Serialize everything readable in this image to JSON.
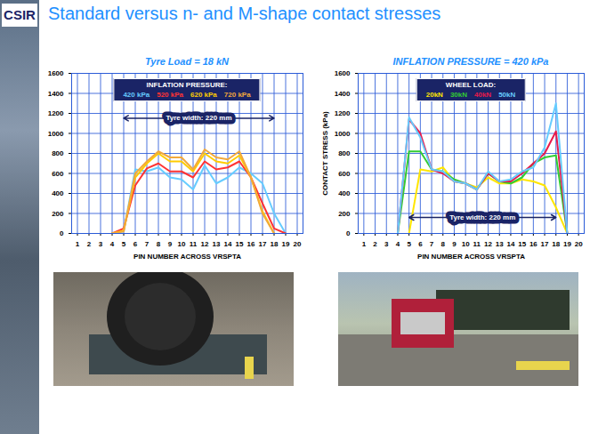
{
  "slide": {
    "logo": "CSIR",
    "title": "Standard versus n- and M-shape contact stresses"
  },
  "chart_data": [
    {
      "type": "line",
      "title": "Tyre Load = 18 kN",
      "xlabel": "PIN NUMBER ACROSS VRSPTA",
      "legend_title": "INFLATION PRESSURE:",
      "legend": "top",
      "grid": true,
      "annotations": [
        {
          "text": "Tyre width: 220 mm"
        }
      ],
      "x": [
        1,
        2,
        3,
        4,
        5,
        6,
        7,
        8,
        9,
        10,
        11,
        12,
        13,
        14,
        15,
        16,
        17,
        18,
        19,
        20
      ],
      "xlim": [
        0.5,
        20.5
      ],
      "xticks": [
        1,
        2,
        3,
        4,
        5,
        6,
        7,
        8,
        9,
        10,
        11,
        12,
        13,
        14,
        15,
        16,
        17,
        18,
        19,
        20
      ],
      "ylim": [
        0,
        1600
      ],
      "yticks": [
        0,
        200,
        400,
        600,
        800,
        1000,
        1200,
        1400,
        1600
      ],
      "series": [
        {
          "name": "420 kPa",
          "color": "#66ccff",
          "values": [
            null,
            null,
            null,
            0,
            20,
            640,
            620,
            660,
            560,
            540,
            440,
            680,
            500,
            560,
            660,
            600,
            500,
            200,
            0,
            null
          ]
        },
        {
          "name": "520 kPa",
          "color": "#ff3333",
          "values": [
            null,
            null,
            null,
            0,
            50,
            480,
            650,
            700,
            620,
            620,
            560,
            720,
            640,
            660,
            720,
            560,
            300,
            50,
            0,
            null
          ]
        },
        {
          "name": "620 kPa",
          "color": "#ffcc00",
          "values": [
            null,
            null,
            null,
            0,
            30,
            560,
            700,
            800,
            720,
            720,
            620,
            800,
            720,
            700,
            780,
            560,
            220,
            0,
            null,
            null
          ]
        },
        {
          "name": "720 kPa",
          "color": "#f2a93b",
          "values": [
            null,
            null,
            null,
            0,
            20,
            600,
            720,
            820,
            760,
            760,
            640,
            840,
            760,
            740,
            820,
            560,
            200,
            0,
            null,
            null
          ]
        }
      ]
    },
    {
      "type": "line",
      "title": "INFLATION PRESSURE = 420 kPa",
      "xlabel": "PIN NUMBER ACROSS VRSPTA",
      "ylabel": "CONTACT STRESS (kPa)",
      "legend_title": "WHEEL LOAD:",
      "legend": "top",
      "grid": true,
      "annotations": [
        {
          "text": "Tyre width: 220 mm"
        }
      ],
      "x": [
        1,
        2,
        3,
        4,
        5,
        6,
        7,
        8,
        9,
        10,
        11,
        12,
        13,
        14,
        15,
        16,
        17,
        18,
        19,
        20
      ],
      "xlim": [
        0.5,
        20.5
      ],
      "xticks": [
        1,
        2,
        3,
        4,
        5,
        6,
        7,
        8,
        9,
        10,
        11,
        12,
        13,
        14,
        15,
        16,
        17,
        18,
        19,
        20
      ],
      "ylim": [
        0,
        1600
      ],
      "yticks": [
        0,
        200,
        400,
        600,
        800,
        1000,
        1200,
        1400,
        1600
      ],
      "series": [
        {
          "name": "20kN",
          "color": "#ffe600",
          "values": [
            null,
            null,
            null,
            null,
            0,
            640,
            620,
            660,
            520,
            500,
            460,
            560,
            500,
            500,
            540,
            520,
            480,
            260,
            0,
            null
          ]
        },
        {
          "name": "30kN",
          "color": "#33cc33",
          "values": [
            null,
            null,
            null,
            0,
            820,
            820,
            640,
            620,
            540,
            500,
            440,
            600,
            520,
            500,
            560,
            700,
            760,
            780,
            0,
            null
          ]
        },
        {
          "name": "40kN",
          "color": "#e8194b",
          "values": [
            null,
            null,
            null,
            0,
            1140,
            1000,
            640,
            600,
            520,
            500,
            440,
            600,
            520,
            520,
            600,
            700,
            800,
            1020,
            0,
            null
          ]
        },
        {
          "name": "50kN",
          "color": "#66ccff",
          "values": [
            null,
            null,
            null,
            0,
            1160,
            960,
            640,
            620,
            520,
            500,
            440,
            620,
            520,
            540,
            620,
            660,
            860,
            1300,
            0,
            null
          ]
        }
      ]
    }
  ]
}
